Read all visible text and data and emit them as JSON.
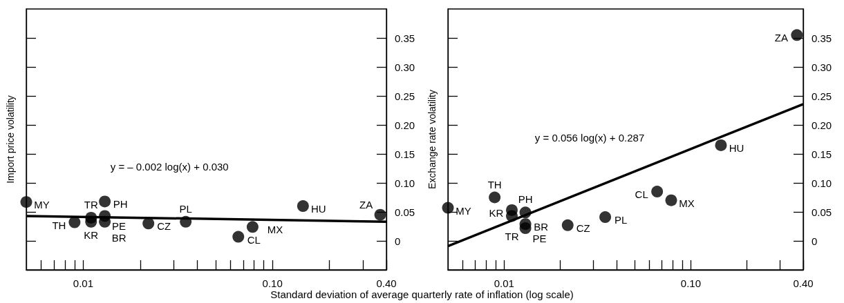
{
  "chart_data": [
    {
      "type": "scatter",
      "ylabel": "Import price volatility",
      "xlabel": "Standard deviation of average quarterly rate of inflation (log scale)",
      "log": "x",
      "marker": "circle",
      "grid": false,
      "xlim": [
        0.005,
        0.4
      ],
      "xticks": [
        {
          "value": 0.006,
          "label": null
        },
        {
          "value": 0.007,
          "label": null
        },
        {
          "value": 0.008,
          "label": null
        },
        {
          "value": 0.009,
          "label": null
        },
        {
          "value": 0.01,
          "label": "0.01"
        },
        {
          "value": 0.02,
          "label": null
        },
        {
          "value": 0.03,
          "label": null
        },
        {
          "value": 0.04,
          "label": null
        },
        {
          "value": 0.05,
          "label": null
        },
        {
          "value": 0.06,
          "label": null
        },
        {
          "value": 0.07,
          "label": null
        },
        {
          "value": 0.08,
          "label": null
        },
        {
          "value": 0.09,
          "label": null
        },
        {
          "value": 0.1,
          "label": "0.10"
        },
        {
          "value": 0.2,
          "label": null
        },
        {
          "value": 0.3,
          "label": null
        },
        {
          "value": 0.4,
          "label": "0.40"
        }
      ],
      "ylim": [
        -0.05,
        0.4
      ],
      "yticks": [
        0,
        {
          "value": 0.05,
          "label": "0.05"
        },
        {
          "value": 0.1,
          "label": "0.10"
        },
        {
          "value": 0.15,
          "label": "0.15"
        },
        {
          "value": 0.2,
          "label": "0.20"
        },
        {
          "value": 0.25,
          "label": "0.25"
        },
        {
          "value": 0.3,
          "label": "0.30"
        },
        {
          "value": 0.35,
          "label": "0.35"
        }
      ],
      "series": [
        {
          "type": "scatter",
          "color": "#000000",
          "x": [
            0.005,
            0.009,
            0.011,
            0.011,
            0.013,
            0.013,
            0.013,
            0.0221,
            0.0348,
            0.066,
            0.0785,
            0.145,
            0.371
          ],
          "values": [
            0.067,
            0.032,
            0.04,
            0.033,
            0.068,
            0.043,
            0.033,
            0.03,
            0.033,
            0.007,
            0.024,
            0.06,
            0.045
          ]
        },
        {
          "type": "line",
          "color": "#000000",
          "line_style": "solid",
          "marker": "none",
          "x": [
            0.005,
            0.4
          ],
          "values": [
            0.043,
            0.033
          ]
        }
      ],
      "annotations": [
        {
          "text": "MY",
          "x": 0.005,
          "y": 0.067
        },
        {
          "text": "TH",
          "x": 0.009,
          "y": 0.032
        },
        {
          "text": "KR",
          "x": 0.011,
          "y": 0.033
        },
        {
          "text": "TR",
          "x": 0.011,
          "y": 0.04
        },
        {
          "text": "PH",
          "x": 0.013,
          "y": 0.068
        },
        {
          "text": "PE",
          "x": 0.013,
          "y": 0.043
        },
        {
          "text": "BR",
          "x": 0.013,
          "y": 0.033
        },
        {
          "text": "CZ",
          "x": 0.0221,
          "y": 0.03
        },
        {
          "text": "PL",
          "x": 0.0348,
          "y": 0.033
        },
        {
          "text": "CL",
          "x": 0.066,
          "y": 0.007
        },
        {
          "text": "MX",
          "x": 0.0785,
          "y": 0.024
        },
        {
          "text": "HU",
          "x": 0.145,
          "y": 0.06
        },
        {
          "text": "ZA",
          "x": 0.371,
          "y": 0.045
        },
        "y = – 0.002 log(x) + 0.030"
      ]
    },
    {
      "type": "scatter",
      "ylabel": "Exchange rate volatility",
      "log": "x",
      "marker": "circle",
      "grid": false,
      "xlim": [
        0.005,
        0.4
      ],
      "xticks": [
        {
          "value": 0.006,
          "label": null
        },
        {
          "value": 0.007,
          "label": null
        },
        {
          "value": 0.008,
          "label": null
        },
        {
          "value": 0.009,
          "label": null
        },
        {
          "value": 0.01,
          "label": "0.01"
        },
        {
          "value": 0.02,
          "label": null
        },
        {
          "value": 0.03,
          "label": null
        },
        {
          "value": 0.04,
          "label": null
        },
        {
          "value": 0.05,
          "label": null
        },
        {
          "value": 0.06,
          "label": null
        },
        {
          "value": 0.07,
          "label": null
        },
        {
          "value": 0.08,
          "label": null
        },
        {
          "value": 0.09,
          "label": null
        },
        {
          "value": 0.1,
          "label": "0.10"
        },
        {
          "value": 0.2,
          "label": null
        },
        {
          "value": 0.3,
          "label": null
        },
        {
          "value": 0.4,
          "label": "0.40"
        }
      ],
      "ylim": [
        -0.05,
        0.4
      ],
      "yticks": [
        0,
        {
          "value": 0.05,
          "label": "0.05"
        },
        {
          "value": 0.1,
          "label": "0.10"
        },
        {
          "value": 0.15,
          "label": "0.15"
        },
        {
          "value": 0.2,
          "label": "0.20"
        },
        {
          "value": 0.25,
          "label": "0.25"
        },
        {
          "value": 0.3,
          "label": "0.30"
        },
        {
          "value": 0.35,
          "label": "0.35"
        }
      ],
      "series": [
        {
          "type": "scatter",
          "color": "#000000",
          "x": [
            0.005,
            0.0089,
            0.011,
            0.011,
            0.013,
            0.013,
            0.013,
            0.0219,
            0.0348,
            0.066,
            0.0785,
            0.145,
            0.37
          ],
          "values": [
            0.057,
            0.075,
            0.053,
            0.043,
            0.049,
            0.029,
            0.022,
            0.027,
            0.041,
            0.085,
            0.07,
            0.165,
            0.355
          ]
        },
        {
          "type": "line",
          "color": "#000000",
          "line_style": "solid",
          "marker": "none",
          "x": [
            0.005,
            0.4
          ],
          "values": [
            -0.009,
            0.236
          ]
        }
      ],
      "annotations": [
        {
          "text": "MY",
          "x": 0.005,
          "y": 0.057
        },
        {
          "text": "TH",
          "x": 0.0089,
          "y": 0.075
        },
        {
          "text": "KR",
          "x": 0.011,
          "y": 0.053
        },
        {
          "text": "PH",
          "x": 0.013,
          "y": 0.049
        },
        {
          "text": "TR",
          "x": 0.011,
          "y": 0.043
        },
        {
          "text": "BR",
          "x": 0.013,
          "y": 0.029
        },
        {
          "text": "PE",
          "x": 0.013,
          "y": 0.022
        },
        {
          "text": "CZ",
          "x": 0.0219,
          "y": 0.027
        },
        {
          "text": "PL",
          "x": 0.0348,
          "y": 0.041
        },
        {
          "text": "CL",
          "x": 0.066,
          "y": 0.085
        },
        {
          "text": "MX",
          "x": 0.0785,
          "y": 0.07
        },
        {
          "text": "HU",
          "x": 0.145,
          "y": 0.165
        },
        {
          "text": "ZA",
          "x": 0.37,
          "y": 0.355
        },
        "y = 0.056 log(x) + 0.287"
      ]
    }
  ]
}
